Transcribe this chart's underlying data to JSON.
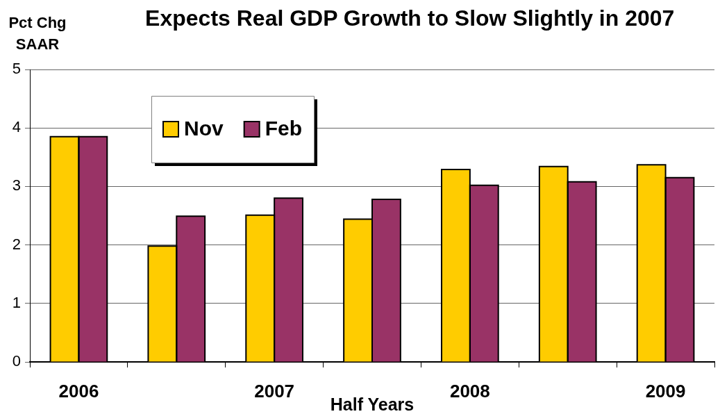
{
  "chart_data": {
    "type": "bar",
    "title": "Expects Real GDP Growth to Slow Slightly in 2007",
    "ylabel": "Pct Chg SAAR",
    "xlabel": "Half Years",
    "categories": [
      "2006",
      null,
      "2007",
      null,
      "2008",
      null,
      "2009"
    ],
    "series": [
      {
        "name": "Nov",
        "color": "#ffcc00",
        "values": [
          3.85,
          1.98,
          2.51,
          2.44,
          3.29,
          3.34,
          3.37
        ]
      },
      {
        "name": "Feb",
        "color": "#993366",
        "values": [
          3.85,
          2.49,
          2.8,
          2.78,
          3.02,
          3.08,
          3.15
        ]
      }
    ],
    "ylim": [
      0,
      5
    ],
    "yticks": [
      0,
      1,
      2,
      3,
      4,
      5
    ],
    "grid": "y",
    "legend": "top left"
  }
}
